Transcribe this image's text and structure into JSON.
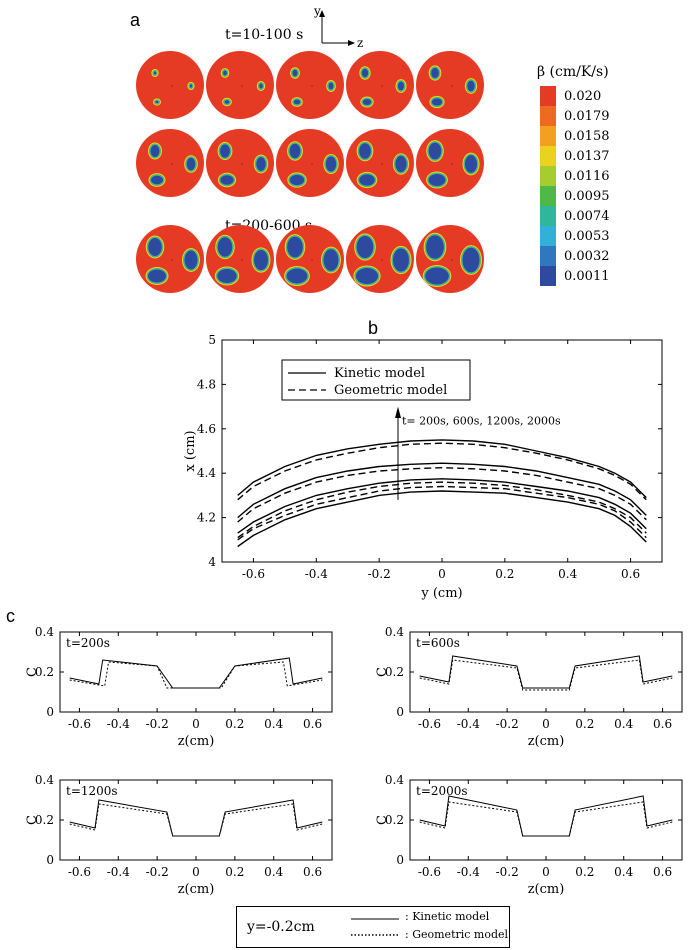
{
  "panel_letters": {
    "a": "a",
    "b": "b",
    "c": "c"
  },
  "colors": {
    "red": "#E53B25",
    "blue": "#2E4A9E",
    "cyan": "#35B3D6",
    "green": "#4FB848",
    "yellow": "#E8D62A"
  },
  "panel_a": {
    "label_top": "t=10-100 s",
    "label_bottom": "t=200-600 s",
    "axis_y": "y",
    "axis_z": "z",
    "colorbar_title": "β (cm/K/s)",
    "colorbar_ticks": [
      "0.020",
      "0.0179",
      "0.0158",
      "0.0137",
      "0.0116",
      "0.0095",
      "0.0074",
      "0.0053",
      "0.0032",
      "0.0011"
    ],
    "colorbar_colors": [
      "#E53B25",
      "#EE6A20",
      "#F3A020",
      "#EAD21E",
      "#A6CD2E",
      "#4FB848",
      "#2FB79A",
      "#31B0D8",
      "#2F78C0",
      "#2E4A9E"
    ]
  },
  "chart_data": [
    {
      "type": "line",
      "xlabel": "y (cm)",
      "ylabel": "x (cm)",
      "xlim": [
        -0.7,
        0.7
      ],
      "ylim": [
        4,
        5
      ],
      "xticks": [
        "-0.6",
        "-0.4",
        "-0.2",
        "0",
        "0.2",
        "0.4",
        "0.6"
      ],
      "yticks": [
        "4",
        "4.2",
        "4.4",
        "4.6",
        "4.8",
        "5"
      ],
      "legend": [
        "Kinetic model",
        "Geometric model"
      ],
      "annotation": "t= 200s, 600s, 1200s, 2000s",
      "series": [
        {
          "name": "Kinetic model",
          "x": [
            -0.65,
            -0.6,
            -0.5,
            -0.4,
            -0.3,
            -0.2,
            -0.1,
            0,
            0.1,
            0.2,
            0.3,
            0.4,
            0.5,
            0.55,
            0.6,
            0.65
          ],
          "y": [
            4.07,
            4.12,
            4.19,
            4.24,
            4.27,
            4.3,
            4.315,
            4.32,
            4.315,
            4.31,
            4.29,
            4.27,
            4.24,
            4.21,
            4.16,
            4.09
          ]
        },
        {
          "name": "Geometric model",
          "x": [
            -0.65,
            -0.6,
            -0.5,
            -0.4,
            -0.3,
            -0.2,
            -0.1,
            0,
            0.1,
            0.2,
            0.3,
            0.4,
            0.5,
            0.55,
            0.6,
            0.65
          ],
          "y": [
            4.1,
            4.15,
            4.21,
            4.26,
            4.29,
            4.32,
            4.335,
            4.34,
            4.335,
            4.33,
            4.31,
            4.29,
            4.26,
            4.23,
            4.18,
            4.11
          ]
        },
        {
          "name": "Kinetic model",
          "x": [
            -0.65,
            -0.6,
            -0.5,
            -0.4,
            -0.3,
            -0.2,
            -0.1,
            0,
            0.1,
            0.2,
            0.3,
            0.4,
            0.5,
            0.55,
            0.6,
            0.65
          ],
          "y": [
            4.13,
            4.18,
            4.25,
            4.3,
            4.33,
            4.355,
            4.37,
            4.375,
            4.37,
            4.36,
            4.34,
            4.32,
            4.29,
            4.26,
            4.22,
            4.15
          ]
        },
        {
          "name": "Geometric model",
          "x": [
            -0.65,
            -0.6,
            -0.5,
            -0.4,
            -0.3,
            -0.2,
            -0.1,
            0,
            0.1,
            0.2,
            0.3,
            0.4,
            0.5,
            0.55,
            0.6,
            0.65
          ],
          "y": [
            4.11,
            4.16,
            4.23,
            4.28,
            4.315,
            4.34,
            4.355,
            4.36,
            4.355,
            4.345,
            4.325,
            4.3,
            4.27,
            4.24,
            4.2,
            4.13
          ]
        },
        {
          "name": "Kinetic model",
          "x": [
            -0.65,
            -0.6,
            -0.5,
            -0.4,
            -0.3,
            -0.2,
            -0.1,
            0,
            0.1,
            0.2,
            0.3,
            0.4,
            0.5,
            0.55,
            0.6,
            0.65
          ],
          "y": [
            4.2,
            4.26,
            4.33,
            4.38,
            4.41,
            4.43,
            4.44,
            4.445,
            4.44,
            4.43,
            4.41,
            4.38,
            4.35,
            4.32,
            4.28,
            4.21
          ]
        },
        {
          "name": "Geometric model",
          "x": [
            -0.65,
            -0.6,
            -0.5,
            -0.4,
            -0.3,
            -0.2,
            -0.1,
            0,
            0.1,
            0.2,
            0.3,
            0.4,
            0.5,
            0.55,
            0.6,
            0.65
          ],
          "y": [
            4.18,
            4.24,
            4.31,
            4.36,
            4.39,
            4.41,
            4.42,
            4.425,
            4.42,
            4.41,
            4.39,
            4.36,
            4.33,
            4.3,
            4.26,
            4.19
          ]
        },
        {
          "name": "Kinetic model",
          "x": [
            -0.65,
            -0.6,
            -0.5,
            -0.4,
            -0.3,
            -0.2,
            -0.1,
            0,
            0.1,
            0.2,
            0.3,
            0.4,
            0.5,
            0.55,
            0.6,
            0.65
          ],
          "y": [
            4.3,
            4.36,
            4.43,
            4.48,
            4.51,
            4.53,
            4.545,
            4.55,
            4.545,
            4.53,
            4.5,
            4.47,
            4.43,
            4.4,
            4.36,
            4.29
          ]
        },
        {
          "name": "Geometric model",
          "x": [
            -0.65,
            -0.6,
            -0.5,
            -0.4,
            -0.3,
            -0.2,
            -0.1,
            0,
            0.1,
            0.2,
            0.3,
            0.4,
            0.5,
            0.55,
            0.6,
            0.65
          ],
          "y": [
            4.28,
            4.34,
            4.41,
            4.46,
            4.49,
            4.515,
            4.53,
            4.535,
            4.53,
            4.515,
            4.49,
            4.46,
            4.42,
            4.39,
            4.35,
            4.28
          ]
        }
      ]
    },
    {
      "type": "line",
      "title": "t=200s",
      "xlabel": "z(cm)",
      "ylabel": "C",
      "xlim": [
        -0.7,
        0.7
      ],
      "ylim": [
        0,
        0.4
      ],
      "xticks": [
        "-0.6",
        "-0.4",
        "-0.2",
        "0",
        "0.2",
        "0.4",
        "0.6"
      ],
      "yticks": [
        "0",
        "0.2",
        "0.4"
      ],
      "series": [
        {
          "name": "Kinetic model",
          "x": [
            -0.65,
            -0.5,
            -0.48,
            -0.2,
            -0.12,
            0.12,
            0.2,
            0.48,
            0.5,
            0.65
          ],
          "y": [
            0.17,
            0.14,
            0.26,
            0.23,
            0.12,
            0.12,
            0.23,
            0.27,
            0.14,
            0.17
          ]
        },
        {
          "name": "Geometric model",
          "x": [
            -0.65,
            -0.47,
            -0.45,
            -0.2,
            -0.15,
            0.13,
            0.2,
            0.45,
            0.47,
            0.65
          ],
          "y": [
            0.16,
            0.13,
            0.25,
            0.23,
            0.12,
            0.12,
            0.23,
            0.25,
            0.13,
            0.16
          ]
        }
      ]
    },
    {
      "type": "line",
      "title": "t=600s",
      "xlabel": "z(cm)",
      "ylabel": "C",
      "xlim": [
        -0.7,
        0.7
      ],
      "ylim": [
        0,
        0.4
      ],
      "xticks": [
        "-0.6",
        "-0.4",
        "-0.2",
        "0",
        "0.2",
        "0.4",
        "0.6"
      ],
      "yticks": [
        "0",
        "0.2",
        "0.4"
      ],
      "series": [
        {
          "name": "Kinetic model",
          "x": [
            -0.65,
            -0.5,
            -0.48,
            -0.15,
            -0.12,
            0.12,
            0.15,
            0.48,
            0.5,
            0.65
          ],
          "y": [
            0.18,
            0.15,
            0.28,
            0.23,
            0.12,
            0.12,
            0.23,
            0.28,
            0.15,
            0.18
          ]
        },
        {
          "name": "Geometric model",
          "x": [
            -0.65,
            -0.5,
            -0.48,
            -0.15,
            -0.12,
            0.12,
            0.15,
            0.48,
            0.5,
            0.65
          ],
          "y": [
            0.17,
            0.14,
            0.26,
            0.22,
            0.11,
            0.11,
            0.22,
            0.26,
            0.14,
            0.17
          ]
        }
      ]
    },
    {
      "type": "line",
      "title": "t=1200s",
      "xlabel": "z(cm)",
      "ylabel": "C",
      "xlim": [
        -0.7,
        0.7
      ],
      "ylim": [
        0,
        0.4
      ],
      "xticks": [
        "-0.6",
        "-0.4",
        "-0.2",
        "0",
        "0.2",
        "0.4",
        "0.6"
      ],
      "yticks": [
        "0",
        "0.2",
        "0.4"
      ],
      "series": [
        {
          "name": "Kinetic model",
          "x": [
            -0.65,
            -0.52,
            -0.5,
            -0.15,
            -0.12,
            0.12,
            0.15,
            0.5,
            0.52,
            0.65
          ],
          "y": [
            0.19,
            0.16,
            0.3,
            0.24,
            0.12,
            0.12,
            0.24,
            0.3,
            0.16,
            0.19
          ]
        },
        {
          "name": "Geometric model",
          "x": [
            -0.65,
            -0.52,
            -0.5,
            -0.15,
            -0.12,
            0.12,
            0.15,
            0.5,
            0.52,
            0.65
          ],
          "y": [
            0.18,
            0.15,
            0.28,
            0.23,
            0.12,
            0.12,
            0.23,
            0.28,
            0.15,
            0.18
          ]
        }
      ]
    },
    {
      "type": "line",
      "title": "t=2000s",
      "xlabel": "z(cm)",
      "ylabel": "C",
      "xlim": [
        -0.7,
        0.7
      ],
      "ylim": [
        0,
        0.4
      ],
      "xticks": [
        "-0.6",
        "-0.4",
        "-0.2",
        "0",
        "0.2",
        "0.4",
        "0.6"
      ],
      "yticks": [
        "0",
        "0.2",
        "0.4"
      ],
      "series": [
        {
          "name": "Kinetic model",
          "x": [
            -0.65,
            -0.52,
            -0.5,
            -0.15,
            -0.12,
            0.12,
            0.15,
            0.5,
            0.52,
            0.65
          ],
          "y": [
            0.2,
            0.17,
            0.32,
            0.25,
            0.12,
            0.12,
            0.25,
            0.32,
            0.17,
            0.2
          ]
        },
        {
          "name": "Geometric model",
          "x": [
            -0.65,
            -0.52,
            -0.5,
            -0.15,
            -0.12,
            0.12,
            0.15,
            0.5,
            0.52,
            0.65
          ],
          "y": [
            0.19,
            0.16,
            0.29,
            0.24,
            0.12,
            0.12,
            0.24,
            0.29,
            0.16,
            0.19
          ]
        }
      ]
    }
  ],
  "bottom_legend": {
    "y_label": "y=-0.2cm",
    "kinetic": ": Kinetic model",
    "geometric": ": Geometric model"
  }
}
